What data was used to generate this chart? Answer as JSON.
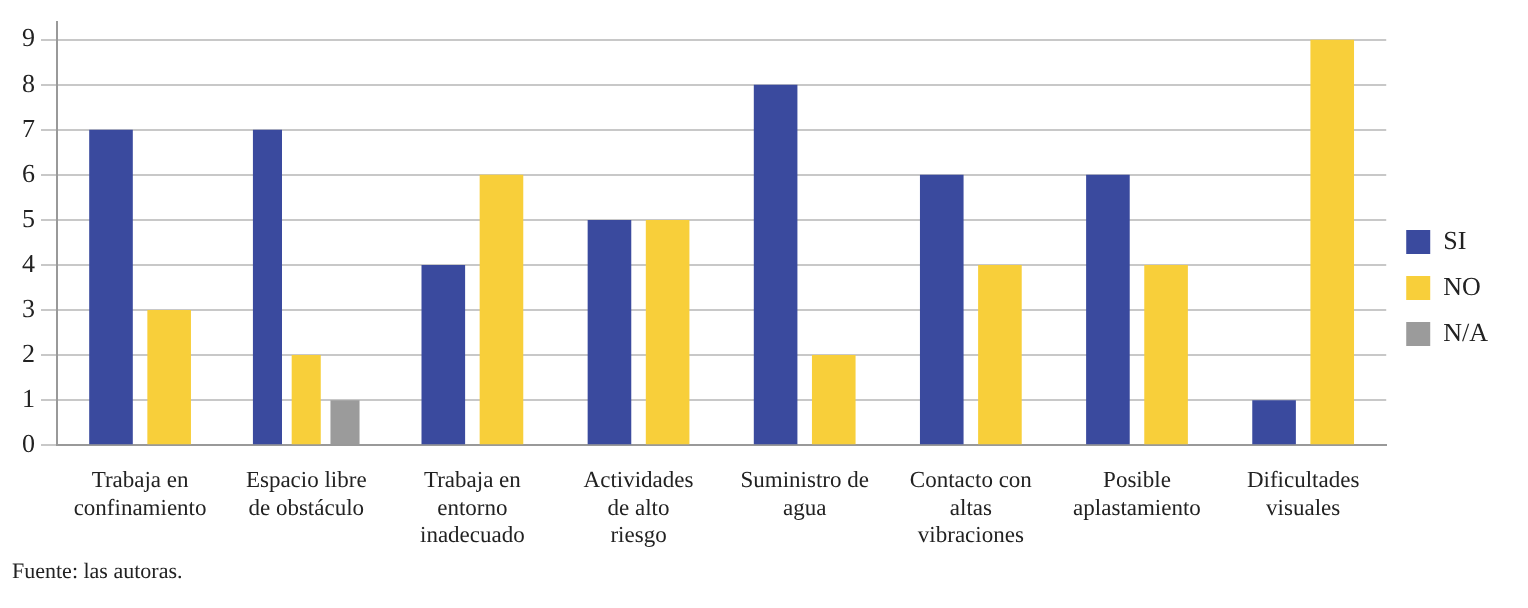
{
  "chart_data": {
    "type": "bar",
    "categories": [
      "Trabaja en confinamiento",
      "Espacio libre de obstáculo",
      "Trabaja en entorno inadecuado",
      "Actividades de alto riesgo",
      "Suministro de agua",
      "Contacto con altas vibraciones",
      "Posible aplastamiento",
      "Dificultades visuales"
    ],
    "series": [
      {
        "name": "SI",
        "color": "#3a4a9e",
        "values": [
          7,
          7,
          4,
          5,
          8,
          6,
          6,
          1
        ]
      },
      {
        "name": "NO",
        "color": "#f8cf3a",
        "values": [
          3,
          2,
          6,
          5,
          2,
          4,
          4,
          9
        ]
      },
      {
        "name": "N/A",
        "color": "#9b9b9b",
        "values": [
          null,
          1,
          null,
          null,
          null,
          null,
          null,
          null
        ]
      }
    ],
    "ylim": [
      0,
      9.4
    ],
    "yticks": [
      0,
      1,
      2,
      3,
      4,
      5,
      6,
      7,
      8,
      9
    ],
    "grid": "y",
    "legend": "right",
    "annotations": [
      "Fuente: las autoras."
    ]
  }
}
